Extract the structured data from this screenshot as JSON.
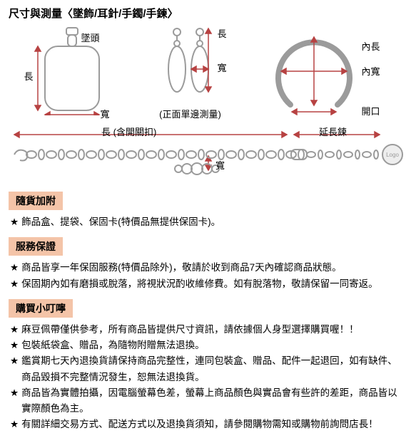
{
  "title": "尺寸與測量〈墜飾/耳針/手鐲/手鍊〉",
  "pendant": {
    "bail_label": "墜頭",
    "length_label": "長",
    "width_label": "寬",
    "outline_color": "#9b9b9b",
    "arrow_color": "#b74242"
  },
  "earring": {
    "length_label": "長",
    "width_label": "寬",
    "caption": "(正面單邊測量)",
    "outline_color": "#9b9b9b",
    "arrow_color": "#b74242"
  },
  "bracelet": {
    "inner_length_label": "內長",
    "inner_width_label": "內寬",
    "opening_label": "開口",
    "outline_color": "#9b9b9b",
    "arrow_color": "#b74242"
  },
  "chain": {
    "length_label": "長 (含開關扣)",
    "extension_label": "延長鍊",
    "width_label": "寬",
    "logo_label": "Logo",
    "outline_color": "#9b9b9b",
    "arrow_color": "#b74242"
  },
  "sections": {
    "included": {
      "title": "隨貨加附",
      "items": [
        "飾品盒、提袋、保固卡(特價品無提供保固卡)。"
      ]
    },
    "warranty": {
      "title": "服務保證",
      "items": [
        "商品皆享一年保固服務(特價品除外)，敬請於收到商品7天內確認商品狀態。",
        "保固期內如有磨損或脫落，將視狀況酌收維修費。如有脫落物，敬請保留一同寄返。"
      ]
    },
    "tips": {
      "title": "購買小叮嚀",
      "items": [
        "麻豆佩帶僅供參考，所有商品皆提供尺寸資訊，請依據個人身型選擇購買喔！！",
        "包裝紙袋盒、贈品，為隨物附贈無法退換。",
        "鑑賞期七天內退換貨請保持商品完整性，連同包裝盒、贈品、配件一起退回，如有缺件、商品毀損不完整情況發生，恕無法退換貨。",
        "商品皆為實體拍攝，因電腦螢幕色差，螢幕上商品顏色與實品會有些許的差距，商品皆以實際顏色為主。",
        "有關詳細交易方式、配送方式以及退換貨須知，請參閱購物需知或購物前詢問店長！"
      ]
    }
  },
  "section_bar_bg": "#f4c4a8",
  "star": "★"
}
